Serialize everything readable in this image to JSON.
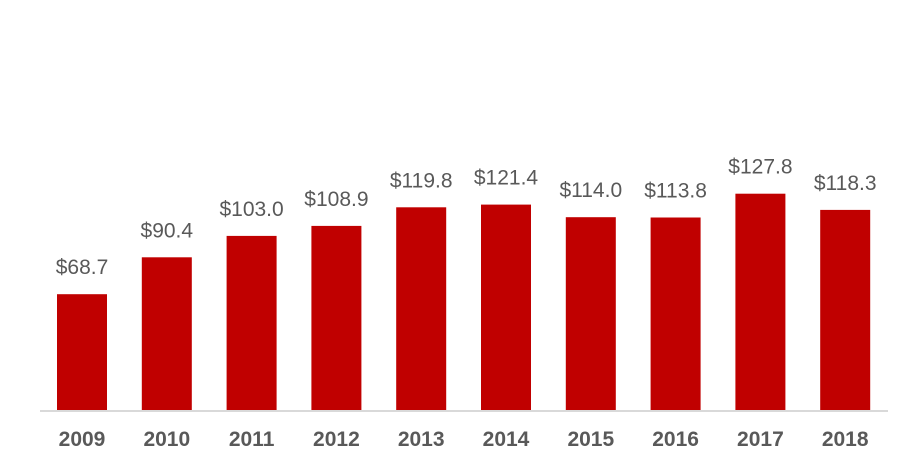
{
  "chart_data": {
    "type": "bar",
    "categories": [
      "2009",
      "2010",
      "2011",
      "2012",
      "2013",
      "2014",
      "2015",
      "2016",
      "2017",
      "2018"
    ],
    "values": [
      68.7,
      90.4,
      103.0,
      108.9,
      119.8,
      121.4,
      114.0,
      113.8,
      127.8,
      118.3
    ],
    "data_labels": [
      "$68.7",
      "$90.4",
      "$103.0",
      "$108.9",
      "$119.8",
      "$121.4",
      "$114.0",
      "$113.8",
      "$127.8",
      "$118.3"
    ],
    "title": "",
    "xlabel": "",
    "ylabel": "",
    "ylim": [
      0,
      130
    ],
    "grid": false,
    "legend": "none",
    "colors": {
      "bar": "#C00000",
      "axis": "#D9D9D9",
      "text": "#595959"
    }
  }
}
